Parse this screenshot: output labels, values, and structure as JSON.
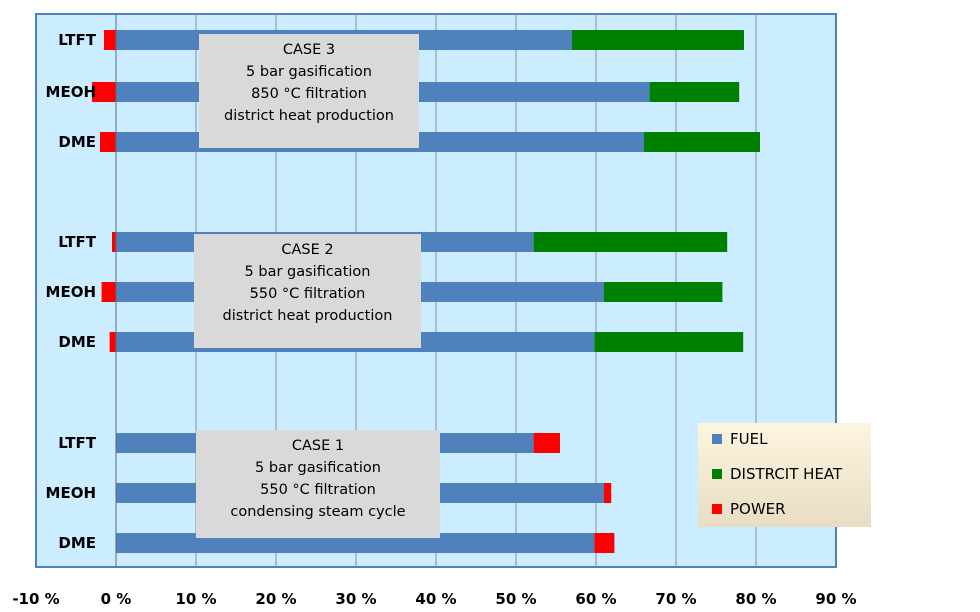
{
  "chart_data": {
    "type": "bar",
    "orientation": "horizontal",
    "stacked": true,
    "xlim": [
      -10,
      90
    ],
    "x_ticks": [
      "-10 %",
      "0 %",
      "10 %",
      "20 %",
      "30 %",
      "40 %",
      "50 %",
      "60 %",
      "70 %",
      "80 %",
      "90 %"
    ],
    "grid": "vertical",
    "legend_position": "bottom-right",
    "groups": [
      {
        "name": "CASE 3",
        "label_lines": [
          "CASE 3",
          "5 bar gasification",
          "850 °C filtration",
          "district heat production"
        ],
        "bars": [
          {
            "category": "LTFT",
            "fuel": 57.0,
            "district_heat": 21.5,
            "power": -1.5
          },
          {
            "category": "MEOH",
            "fuel": 66.7,
            "district_heat": 11.2,
            "power": -3.0
          },
          {
            "category": "DME",
            "fuel": 66.0,
            "district_heat": 14.5,
            "power": -2.0
          }
        ]
      },
      {
        "name": "CASE 2",
        "label_lines": [
          "CASE 2",
          "5 bar gasification",
          "550 °C filtration",
          "district heat production"
        ],
        "bars": [
          {
            "category": "LTFT",
            "fuel": 52.2,
            "district_heat": 24.2,
            "power": -0.5
          },
          {
            "category": "MEOH",
            "fuel": 61.0,
            "district_heat": 14.8,
            "power": -1.8
          },
          {
            "category": "DME",
            "fuel": 59.8,
            "district_heat": 18.6,
            "power": -0.8
          }
        ]
      },
      {
        "name": "CASE 1",
        "label_lines": [
          "CASE 1",
          "5 bar gasification",
          "550 °C filtration",
          "condensing steam cycle"
        ],
        "bars": [
          {
            "category": "LTFT",
            "fuel": 52.2,
            "district_heat": 0,
            "power": 3.3
          },
          {
            "category": "MEOH",
            "fuel": 61.0,
            "district_heat": 0,
            "power": 0.9
          },
          {
            "category": "DME",
            "fuel": 59.8,
            "district_heat": 0,
            "power": 2.5
          }
        ]
      }
    ],
    "series": [
      {
        "key": "fuel",
        "name": "FUEL",
        "color": "#4f81bd"
      },
      {
        "key": "district_heat",
        "name": "DISTRCIT HEAT",
        "color": "#008000"
      },
      {
        "key": "power",
        "name": "POWER",
        "color": "#ff0000"
      }
    ]
  },
  "colors": {
    "plot_bg": "#ccecff",
    "plot_border": "#4f81bd",
    "grid": "#7f8fa6",
    "case_box": "#d9d9d9"
  }
}
